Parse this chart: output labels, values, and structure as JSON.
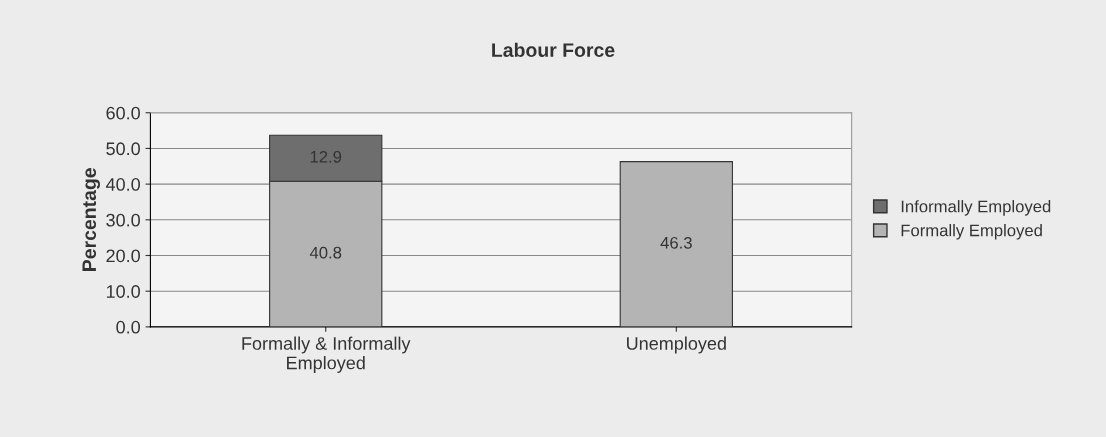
{
  "chart_data": {
    "type": "bar",
    "title": "Labour Force",
    "ylabel": "Percentage",
    "categories": [
      "Formally & Informally\nEmployed",
      "Unemployed"
    ],
    "stacked": true,
    "series": [
      {
        "name": "Formally Employed",
        "color": "#b4b4b4",
        "values": [
          40.8,
          46.3
        ]
      },
      {
        "name": "Informally Employed",
        "color": "#6e6e6e",
        "values": [
          12.9,
          null
        ]
      }
    ],
    "ylim": [
      0,
      60
    ],
    "yticks": [
      {
        "value": 0,
        "label": "0.0"
      },
      {
        "value": 10,
        "label": "10.0"
      },
      {
        "value": 20,
        "label": "20.0"
      },
      {
        "value": 30,
        "label": "30.0"
      },
      {
        "value": 40,
        "label": "40.0"
      },
      {
        "value": 50,
        "label": "50.0"
      },
      {
        "value": 60,
        "label": "60.0"
      }
    ],
    "grid": "y",
    "legend": "right",
    "data_labels": true
  }
}
